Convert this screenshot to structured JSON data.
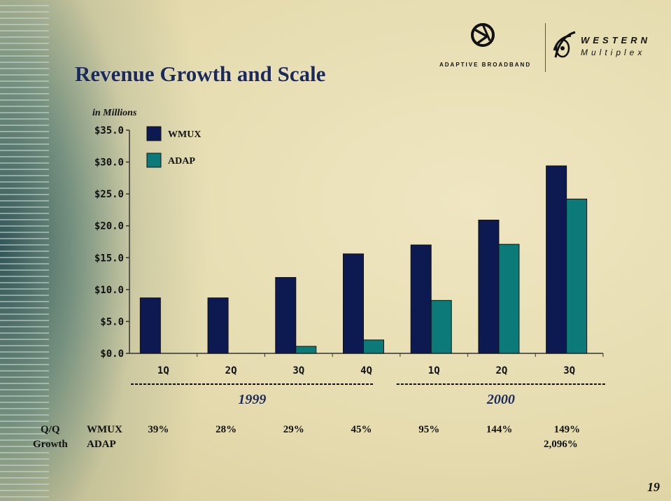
{
  "slide": {
    "title": "Revenue Growth and Scale",
    "units_note": "in Millions",
    "page_number": "19",
    "logos": {
      "adaptive": "ADAPTIVE BROADBAND",
      "western_1": "WESTERN",
      "western_2": "Multiplex"
    }
  },
  "chart_data": {
    "type": "bar",
    "title": "",
    "xlabel": "",
    "ylabel": "",
    "ylim": [
      0,
      35
    ],
    "y_ticks": [
      "$0.0",
      "$5.0",
      "$10.0",
      "$15.0",
      "$20.0",
      "$25.0",
      "$30.0",
      "$35.0"
    ],
    "categories": [
      "1Q",
      "2Q",
      "3Q",
      "4Q",
      "1Q",
      "2Q",
      "3Q"
    ],
    "groups": [
      {
        "label": "1999",
        "from": 0,
        "to": 3
      },
      {
        "label": "2000",
        "from": 4,
        "to": 6
      }
    ],
    "series": [
      {
        "name": "WMUX",
        "color": "#0d1a52",
        "values": [
          8.7,
          8.7,
          11.9,
          15.6,
          17.0,
          20.9,
          29.4
        ]
      },
      {
        "name": "ADAP",
        "color": "#0d7a7a",
        "values": [
          0.0,
          0.0,
          1.1,
          2.1,
          8.3,
          17.1,
          24.2
        ]
      }
    ],
    "legend": "top-left",
    "grid": false
  },
  "growth": {
    "label_1": "Q/Q",
    "label_2": "Growth",
    "wmux_label": "WMUX",
    "adap_label": "ADAP",
    "wmux_values": [
      "39%",
      "28%",
      "29%",
      "45%",
      "95%",
      "144%",
      "149%"
    ],
    "adap_value": "2,096%"
  }
}
